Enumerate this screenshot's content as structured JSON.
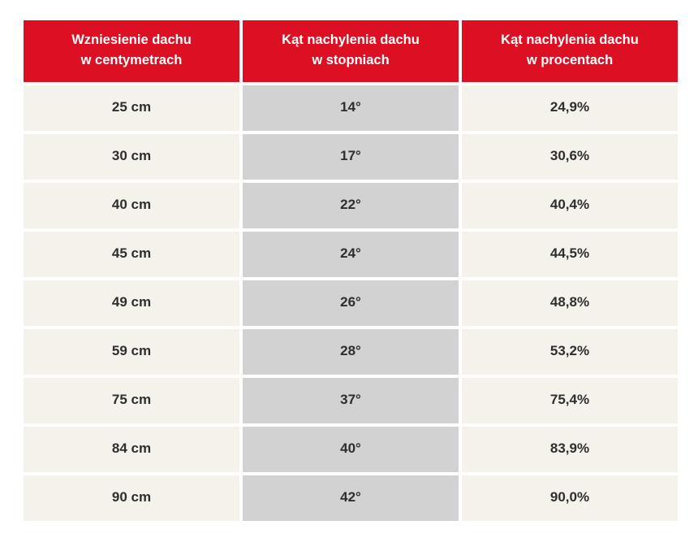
{
  "colors": {
    "header_bg": "#DC0F23",
    "header_text": "#FFFFFF",
    "cell_cream": "#F5F2EC",
    "cell_gray": "#D2D2D2",
    "cell_text": "#2E2E2E"
  },
  "table": {
    "headers": [
      {
        "line1": "Wzniesienie dachu",
        "line2": "w centymetrach"
      },
      {
        "line1": "Kąt nachylenia dachu",
        "line2": "w stopniach"
      },
      {
        "line1": "Kąt nachylenia dachu",
        "line2": "w procentach"
      }
    ],
    "rows": [
      {
        "rise": "25 cm",
        "degrees": "14°",
        "percent": "24,9%"
      },
      {
        "rise": "30 cm",
        "degrees": "17°",
        "percent": "30,6%"
      },
      {
        "rise": "40 cm",
        "degrees": "22°",
        "percent": "40,4%"
      },
      {
        "rise": "45 cm",
        "degrees": "24°",
        "percent": "44,5%"
      },
      {
        "rise": "49 cm",
        "degrees": "26°",
        "percent": "48,8%"
      },
      {
        "rise": "59 cm",
        "degrees": "28°",
        "percent": "53,2%"
      },
      {
        "rise": "75 cm",
        "degrees": "37°",
        "percent": "75,4%"
      },
      {
        "rise": "84 cm",
        "degrees": "40°",
        "percent": "83,9%"
      },
      {
        "rise": "90 cm",
        "degrees": "42°",
        "percent": "90,0%"
      }
    ]
  }
}
